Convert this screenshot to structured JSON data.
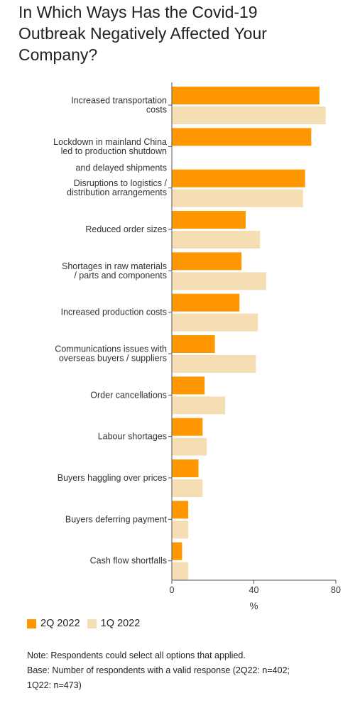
{
  "title_lines": [
    "In Which Ways Has the Covid-19",
    "Outbreak Negatively Affected Your",
    "Company?"
  ],
  "colors": {
    "series_2q": "#FF9800",
    "series_1q": "#F5DEB3",
    "axis": "#555555"
  },
  "legend": [
    {
      "label": "2Q 2022",
      "color": "#FF9800"
    },
    {
      "label": "1Q 2022",
      "color": "#F5DEB3"
    }
  ],
  "notes": [
    "Note: Respondents could select all options that applied.",
    "Base: Number of respondents with a valid response (2Q22: n=402;",
    "1Q22: n=473)"
  ],
  "chart_data": {
    "type": "bar",
    "orientation": "horizontal",
    "categories": [
      [
        "Increased transportation",
        "costs"
      ],
      [
        "Lockdown in mainland China",
        "led to production shutdown",
        "and delayed shipments"
      ],
      [
        "Disruptions to logistics /",
        "distribution arrangements"
      ],
      [
        "Reduced order sizes"
      ],
      [
        "Shortages in raw materials",
        "/ parts and components"
      ],
      [
        "Increased production costs"
      ],
      [
        "Communications issues with",
        "overseas buyers / suppliers"
      ],
      [
        "Order cancellations"
      ],
      [
        "Labour shortages"
      ],
      [
        "Buyers haggling over prices"
      ],
      [
        "Buyers deferring payment"
      ],
      [
        "Cash flow shortfalls"
      ]
    ],
    "series": [
      {
        "name": "2Q 2022",
        "values": [
          72,
          68,
          65,
          36,
          34,
          33,
          21,
          16,
          15,
          13,
          8,
          5
        ]
      },
      {
        "name": "1Q 2022",
        "values": [
          75,
          null,
          64,
          43,
          46,
          42,
          41,
          26,
          17,
          15,
          8,
          8
        ]
      }
    ],
    "xlabel": "%",
    "xlim": [
      0,
      80
    ],
    "xticks": [
      0,
      40,
      80
    ],
    "grid": false,
    "legend_position": "bottom-left"
  }
}
